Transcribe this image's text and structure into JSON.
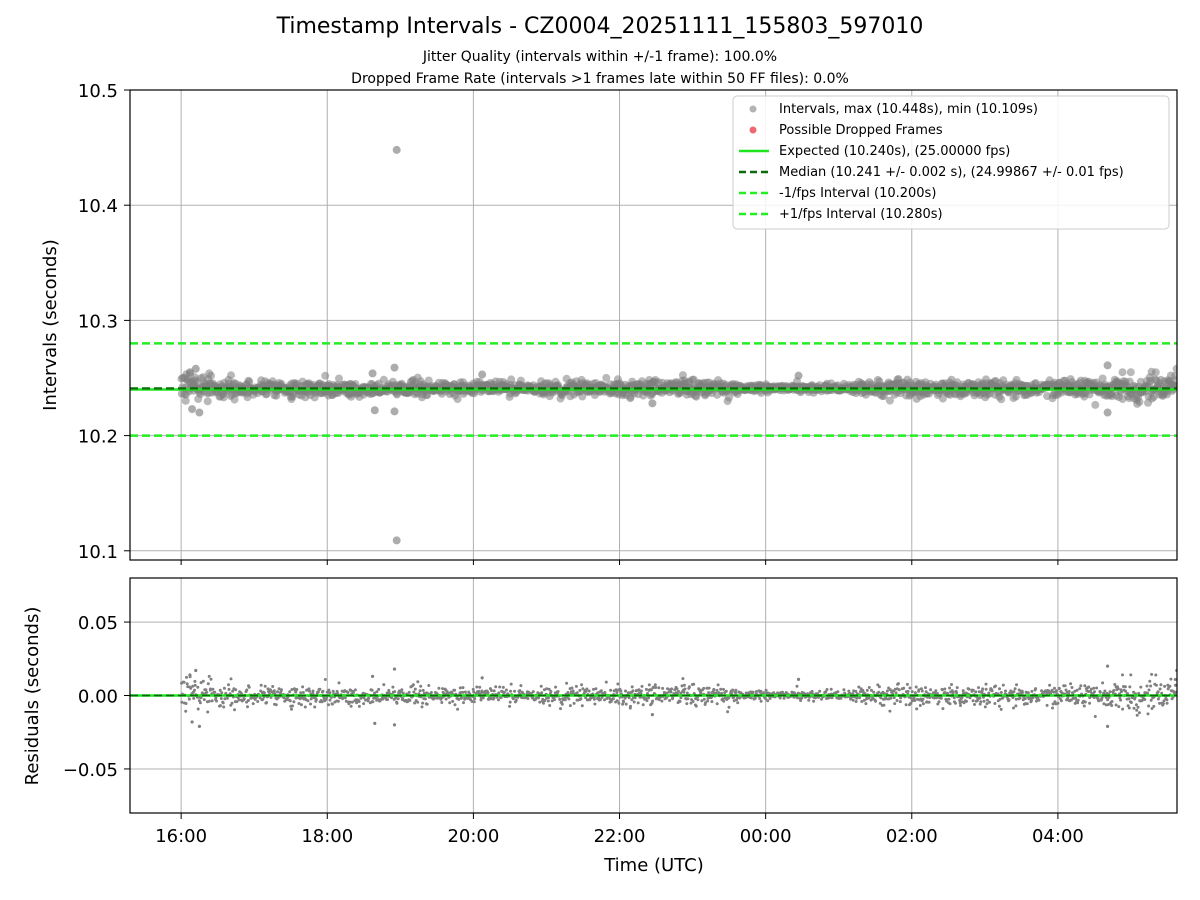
{
  "figure": {
    "title": "Timestamp Intervals - CZ0004_20251111_155803_597010",
    "subtitle_1": "Jitter Quality (intervals within +/-1 frame): 100.0%",
    "subtitle_2": "Dropped Frame Rate (intervals >1 frames late within 50 FF files): 0.0%"
  },
  "colors": {
    "points": "#808080",
    "dropped": "#e8424c",
    "expected": "#1ee61e",
    "median": "#0b6b0b",
    "bounds": "#22ee22",
    "grid": "#b0b0b0"
  },
  "chart_data": [
    {
      "type": "scatter",
      "panel": "intervals",
      "ylabel": "Intervals (seconds)",
      "ylim": [
        10.092,
        10.5
      ],
      "yticks": [
        10.1,
        10.2,
        10.3,
        10.4,
        10.5
      ],
      "ytick_labels": [
        "10.1",
        "10.2",
        "10.3",
        "10.4",
        "10.5"
      ],
      "xlim_hours": [
        15.3,
        29.63
      ],
      "grid": true,
      "legend_position": "top-right",
      "legend": [
        {
          "label": "Intervals, max (10.448s), min (10.109s)",
          "kind": "dot-gray"
        },
        {
          "label": "Possible Dropped Frames",
          "kind": "dot-red"
        },
        {
          "label": "Expected (10.240s), (25.00000 fps)",
          "kind": "solid-green"
        },
        {
          "label": "Median (10.241 +/- 0.002 s), (24.99867 +/- 0.01 fps)",
          "kind": "dashed-darkgreen"
        },
        {
          "label": "-1/fps Interval (10.200s)",
          "kind": "dashed-green"
        },
        {
          "label": "+1/fps Interval (10.280s)",
          "kind": "dashed-green"
        }
      ],
      "series": [
        {
          "name": "Intervals",
          "x_range_hours": [
            16.0,
            29.63
          ],
          "median": 10.241,
          "spread": 0.005,
          "outliers": [
            {
              "x": 18.95,
              "y": 10.448
            },
            {
              "x": 18.95,
              "y": 10.109
            },
            {
              "x": 18.92,
              "y": 10.259
            },
            {
              "x": 18.92,
              "y": 10.221
            },
            {
              "x": 18.65,
              "y": 10.222
            },
            {
              "x": 18.62,
              "y": 10.254
            },
            {
              "x": 16.2,
              "y": 10.258
            },
            {
              "x": 16.25,
              "y": 10.22
            },
            {
              "x": 16.15,
              "y": 10.223
            },
            {
              "x": 16.12,
              "y": 10.255
            },
            {
              "x": 28.68,
              "y": 10.261
            },
            {
              "x": 28.68,
              "y": 10.22
            },
            {
              "x": 20.12,
              "y": 10.253
            },
            {
              "x": 24.45,
              "y": 10.252
            },
            {
              "x": 22.45,
              "y": 10.228
            }
          ]
        }
      ],
      "lines": {
        "expected": 10.24,
        "median": 10.241,
        "lower": 10.2,
        "upper": 10.28
      }
    },
    {
      "type": "scatter",
      "panel": "residuals",
      "ylabel": "Residuals (seconds)",
      "xlabel": "Time (UTC)",
      "ylim": [
        -0.08,
        0.08
      ],
      "yticks": [
        -0.05,
        0.0,
        0.05
      ],
      "ytick_labels": [
        "−0.05",
        "0.00",
        "0.05"
      ],
      "xlim_hours": [
        15.3,
        29.63
      ],
      "xticks_hours": [
        16,
        18,
        20,
        22,
        24,
        26,
        28
      ],
      "xtick_labels": [
        "16:00",
        "18:00",
        "20:00",
        "22:00",
        "00:00",
        "02:00",
        "04:00"
      ],
      "grid": true,
      "zero_line": 0.0
    }
  ]
}
